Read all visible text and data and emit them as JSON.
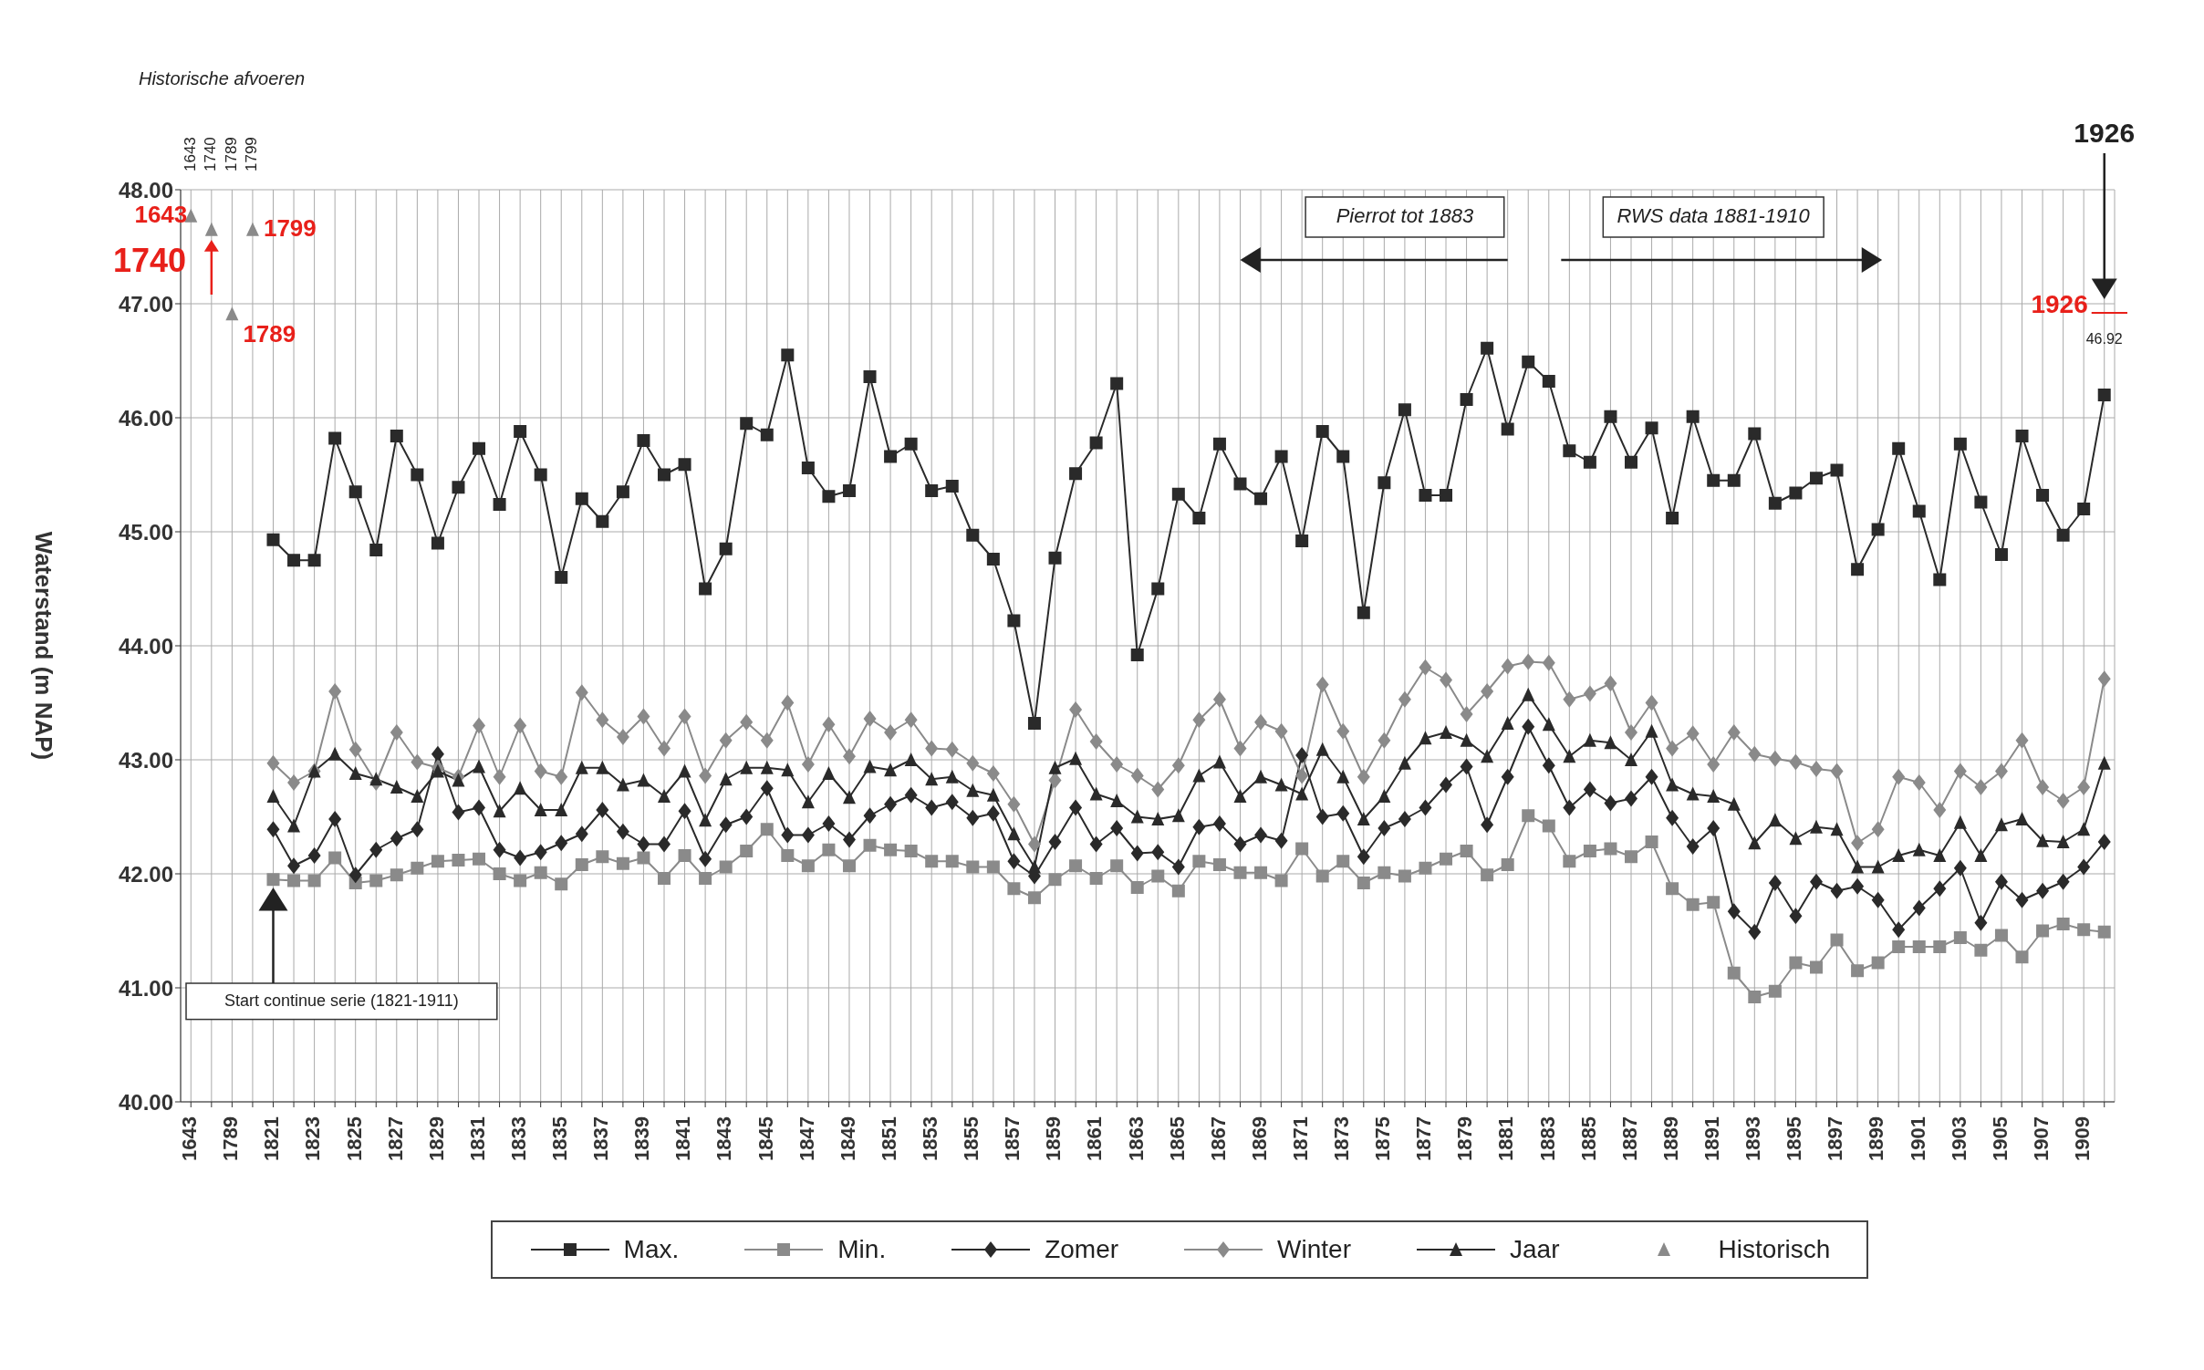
{
  "chart_data": {
    "type": "line",
    "ylabel": "Waterstand (m NAP)",
    "categories": [
      "1643",
      null,
      "1789",
      null,
      "1821",
      null,
      "1823",
      null,
      "1825",
      null,
      "1827",
      null,
      "1829",
      null,
      "1831",
      null,
      "1833",
      null,
      "1835",
      null,
      "1837",
      null,
      "1839",
      null,
      "1841",
      null,
      "1843",
      null,
      "1845",
      null,
      "1847",
      null,
      "1849",
      null,
      "1851",
      null,
      "1853",
      null,
      "1855",
      null,
      "1857",
      null,
      "1859",
      null,
      "1861",
      null,
      "1863",
      null,
      "1865",
      null,
      "1867",
      null,
      "1869",
      null,
      "1871",
      null,
      "1873",
      null,
      "1875",
      null,
      "1877",
      null,
      "1879",
      null,
      "1881",
      null,
      "1883",
      null,
      "1885",
      null,
      "1887",
      null,
      "1889",
      null,
      "1891",
      null,
      "1893",
      null,
      "1895",
      null,
      "1897",
      null,
      "1899",
      null,
      "1901",
      null,
      "1903",
      null,
      "1905",
      null,
      "1907",
      null,
      "1909",
      null
    ],
    "series": [
      {
        "name": "Max.",
        "color": "#2a2a2a",
        "marker": "square",
        "values": [
          null,
          null,
          null,
          null,
          44.93,
          44.75,
          44.75,
          45.82,
          45.35,
          44.84,
          45.84,
          45.5,
          44.9,
          45.39,
          45.73,
          45.24,
          45.88,
          45.5,
          44.6,
          45.29,
          45.09,
          45.35,
          45.8,
          45.5,
          45.59,
          44.5,
          44.85,
          45.95,
          45.85,
          46.55,
          45.56,
          45.31,
          45.36,
          46.36,
          45.66,
          45.77,
          45.36,
          45.4,
          44.97,
          44.76,
          44.22,
          43.32,
          44.77,
          45.51,
          45.78,
          46.3,
          43.92,
          44.5,
          45.33,
          45.12,
          45.77,
          45.42,
          45.29,
          45.66,
          44.92,
          45.88,
          45.66,
          44.29,
          45.43,
          46.07,
          45.32,
          45.32,
          46.16,
          46.61,
          45.9,
          46.49,
          46.32,
          45.71,
          45.61,
          46.01,
          45.61,
          45.91,
          45.12,
          46.01,
          45.45,
          45.45,
          45.86,
          45.25,
          45.34,
          45.47,
          45.54,
          44.67,
          45.02,
          45.73,
          45.18,
          44.58,
          45.77,
          45.26,
          44.8,
          45.84,
          45.32,
          44.97,
          45.2,
          46.2
        ]
      },
      {
        "name": "Min.",
        "color": "#8a8a8a",
        "marker": "square",
        "values": [
          null,
          null,
          null,
          null,
          41.95,
          41.94,
          41.94,
          42.14,
          41.92,
          41.94,
          41.99,
          42.05,
          42.11,
          42.12,
          42.13,
          42.0,
          41.94,
          42.01,
          41.91,
          42.08,
          42.15,
          42.09,
          42.14,
          41.96,
          42.16,
          41.96,
          42.06,
          42.2,
          42.39,
          42.16,
          42.07,
          42.21,
          42.07,
          42.25,
          42.21,
          42.2,
          42.11,
          42.11,
          42.06,
          42.06,
          41.87,
          41.79,
          41.95,
          42.07,
          41.96,
          42.07,
          41.88,
          41.98,
          41.85,
          42.11,
          42.08,
          42.01,
          42.01,
          41.94,
          42.22,
          41.98,
          42.11,
          41.92,
          42.01,
          41.98,
          42.05,
          42.13,
          42.2,
          41.99,
          42.08,
          42.51,
          42.42,
          42.11,
          42.2,
          42.22,
          42.15,
          42.28,
          41.87,
          41.73,
          41.75,
          41.13,
          40.92,
          40.97,
          41.22,
          41.18,
          41.42,
          41.15,
          41.22,
          41.36,
          41.36,
          41.36,
          41.44,
          41.33,
          41.46,
          41.27,
          41.5,
          41.56,
          41.51,
          41.49
        ]
      },
      {
        "name": "Zomer",
        "color": "#2a2a2a",
        "marker": "diamond",
        "values": [
          null,
          null,
          null,
          null,
          42.39,
          42.07,
          42.16,
          42.48,
          41.99,
          42.21,
          42.31,
          42.39,
          43.05,
          42.54,
          42.58,
          42.21,
          42.14,
          42.19,
          42.27,
          42.35,
          42.56,
          42.37,
          42.26,
          42.26,
          42.55,
          42.13,
          42.43,
          42.5,
          42.75,
          42.34,
          42.34,
          42.44,
          42.3,
          42.51,
          42.61,
          42.69,
          42.58,
          42.63,
          42.49,
          42.53,
          42.11,
          41.98,
          42.28,
          42.58,
          42.26,
          42.4,
          42.18,
          42.19,
          42.06,
          42.41,
          42.44,
          42.26,
          42.34,
          42.29,
          43.04,
          42.5,
          42.53,
          42.15,
          42.4,
          42.48,
          42.58,
          42.78,
          42.94,
          42.43,
          42.85,
          43.29,
          42.95,
          42.58,
          42.74,
          42.62,
          42.66,
          42.85,
          42.49,
          42.24,
          42.4,
          41.67,
          41.49,
          41.92,
          41.63,
          41.93,
          41.85,
          41.89,
          41.77,
          41.51,
          41.7,
          41.87,
          42.05,
          41.57,
          41.93,
          41.77,
          41.85,
          41.93,
          42.06,
          42.28
        ]
      },
      {
        "name": "Winter",
        "color": "#8a8a8a",
        "marker": "diamond",
        "values": [
          null,
          null,
          null,
          null,
          42.97,
          42.8,
          42.9,
          43.6,
          43.09,
          42.8,
          43.24,
          42.98,
          42.93,
          42.85,
          43.3,
          42.85,
          43.3,
          42.9,
          42.85,
          43.59,
          43.35,
          43.2,
          43.38,
          43.1,
          43.38,
          42.86,
          43.17,
          43.33,
          43.17,
          43.5,
          42.96,
          43.31,
          43.03,
          43.36,
          43.24,
          43.35,
          43.1,
          43.09,
          42.97,
          42.88,
          42.61,
          42.26,
          42.82,
          43.44,
          43.16,
          42.96,
          42.86,
          42.74,
          42.95,
          43.35,
          43.53,
          43.1,
          43.33,
          43.25,
          42.86,
          43.66,
          43.25,
          42.85,
          43.17,
          43.53,
          43.81,
          43.7,
          43.4,
          43.6,
          43.82,
          43.86,
          43.85,
          43.53,
          43.58,
          43.67,
          43.24,
          43.5,
          43.1,
          43.23,
          42.96,
          43.24,
          43.05,
          43.01,
          42.98,
          42.92,
          42.9,
          42.27,
          42.39,
          42.85,
          42.8,
          42.56,
          42.9,
          42.76,
          42.9,
          43.17,
          42.76,
          42.64,
          42.76,
          43.71
        ]
      },
      {
        "name": "Jaar",
        "color": "#2a2a2a",
        "marker": "triangle",
        "values": [
          null,
          null,
          null,
          null,
          42.68,
          42.42,
          42.9,
          43.05,
          42.88,
          42.83,
          42.76,
          42.68,
          42.9,
          42.82,
          42.94,
          42.55,
          42.75,
          42.56,
          42.56,
          42.93,
          42.93,
          42.78,
          42.82,
          42.68,
          42.9,
          42.47,
          42.83,
          42.93,
          42.93,
          42.91,
          42.63,
          42.88,
          42.67,
          42.94,
          42.91,
          43.0,
          42.83,
          42.85,
          42.73,
          42.69,
          42.35,
          42.06,
          42.93,
          43.01,
          42.7,
          42.64,
          42.5,
          42.48,
          42.51,
          42.86,
          42.98,
          42.68,
          42.85,
          42.78,
          42.7,
          43.09,
          42.85,
          42.48,
          42.68,
          42.97,
          43.19,
          43.24,
          43.17,
          43.03,
          43.32,
          43.57,
          43.31,
          43.03,
          43.17,
          43.15,
          43.0,
          43.25,
          42.78,
          42.7,
          42.68,
          42.61,
          42.27,
          42.47,
          42.31,
          42.41,
          42.39,
          42.06,
          42.06,
          42.16,
          42.21,
          42.16,
          42.45,
          42.16,
          42.43,
          42.48,
          42.29,
          42.28,
          42.39,
          42.97
        ]
      },
      {
        "name": "Historisch",
        "type": "scatter",
        "color": "#8a8a8a",
        "marker": "triangle",
        "values": [
          47.77,
          47.65,
          46.91,
          47.65,
          null,
          null,
          null,
          null,
          null,
          null,
          null,
          null,
          null,
          null,
          null,
          null,
          null,
          null,
          null,
          null,
          null,
          null,
          null,
          null,
          null,
          null,
          null,
          null,
          null,
          null,
          null,
          null,
          null,
          null,
          null,
          null,
          null,
          null,
          null,
          null,
          null,
          null,
          null,
          null,
          null,
          null,
          null,
          null,
          null,
          null,
          null,
          null,
          null,
          null,
          null,
          null,
          null,
          null,
          null,
          null,
          null,
          null,
          null,
          null,
          null,
          null,
          null,
          null,
          null,
          null,
          null,
          null,
          null,
          null,
          null,
          null,
          null,
          null,
          null,
          null,
          null,
          null,
          null,
          null,
          null,
          null,
          null,
          null,
          null,
          null,
          null,
          null,
          null,
          null
        ]
      }
    ],
    "ylim": [
      40,
      48
    ],
    "yticks": [
      {
        "value": 40,
        "label": "40.00"
      },
      {
        "value": 41,
        "label": "41.00"
      },
      {
        "value": 42,
        "label": "42.00"
      },
      {
        "value": 43,
        "label": "43.00"
      },
      {
        "value": 44,
        "label": "44.00"
      },
      {
        "value": 45,
        "label": "45.00"
      },
      {
        "value": 46,
        "label": "46.00"
      },
      {
        "value": 47,
        "label": "47.00"
      },
      {
        "value": 48,
        "label": "48.00"
      }
    ],
    "grid": true,
    "legend": "bottom",
    "annotations": [
      "Historische afvoeren",
      "1643",
      "1740",
      "1789",
      "1799",
      "Pierrot tot 1883",
      "RWS data 1881-1910",
      "Start continue serie (1821-1911)",
      "1926",
      "46.92",
      "1643",
      "1740",
      "1799",
      "1789",
      "1926"
    ]
  }
}
